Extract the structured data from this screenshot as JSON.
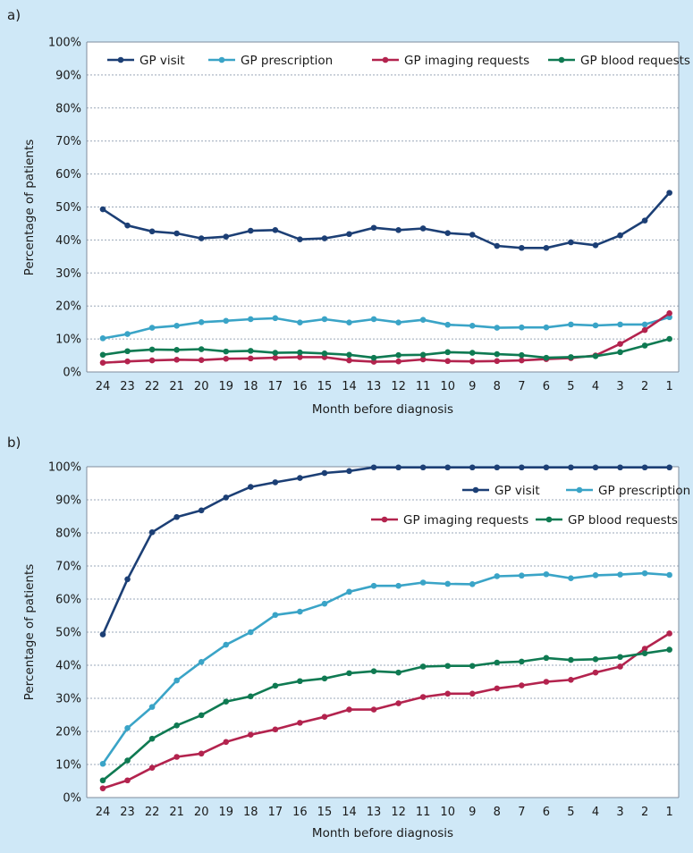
{
  "chart_data": [
    {
      "panel": "a)",
      "type": "line",
      "xlabel": "Month before diagnosis",
      "ylabel": "Percentage of patients",
      "x": [
        24,
        23,
        22,
        21,
        20,
        19,
        18,
        17,
        16,
        15,
        14,
        13,
        12,
        11,
        10,
        9,
        8,
        7,
        6,
        5,
        4,
        3,
        2,
        1
      ],
      "ylim": [
        0,
        100
      ],
      "yticks": [
        "0%",
        "10%",
        "20%",
        "30%",
        "40%",
        "50%",
        "60%",
        "70%",
        "80%",
        "90%",
        "100%"
      ],
      "grid": "horizontal dashed",
      "legend_position": "top",
      "series": [
        {
          "name": "GP visit",
          "color": "#1c3f75",
          "values": [
            49.3,
            44.4,
            42.6,
            42.0,
            40.5,
            41.0,
            42.8,
            43.0,
            40.2,
            40.5,
            41.8,
            43.7,
            43.0,
            43.5,
            42.1,
            41.6,
            38.2,
            37.6,
            37.6,
            39.3,
            38.4,
            41.4,
            45.9,
            54.3
          ]
        },
        {
          "name": "GP prescription",
          "color": "#3aa4c7",
          "values": [
            10.2,
            11.5,
            13.4,
            14.0,
            15.1,
            15.5,
            16.0,
            16.3,
            15.0,
            16.0,
            15.0,
            16.0,
            15.0,
            15.8,
            14.3,
            14.0,
            13.4,
            13.5,
            13.5,
            14.4,
            14.1,
            14.4,
            14.4,
            16.6
          ]
        },
        {
          "name": "GP imaging requests",
          "color": "#b3234e",
          "values": [
            2.8,
            3.2,
            3.5,
            3.7,
            3.6,
            4.0,
            4.1,
            4.3,
            4.5,
            4.5,
            3.5,
            3.1,
            3.2,
            3.8,
            3.3,
            3.2,
            3.3,
            3.5,
            3.9,
            4.2,
            5.0,
            8.5,
            12.7,
            17.8
          ]
        },
        {
          "name": "GP blood requests",
          "color": "#0f7a52",
          "values": [
            5.2,
            6.3,
            6.8,
            6.7,
            6.9,
            6.2,
            6.4,
            5.8,
            5.9,
            5.6,
            5.2,
            4.3,
            5.1,
            5.2,
            6.0,
            5.8,
            5.4,
            5.1,
            4.3,
            4.5,
            4.8,
            6.0,
            8.0,
            10.0
          ]
        }
      ]
    },
    {
      "panel": "b)",
      "type": "line",
      "xlabel": "Month before diagnosis",
      "ylabel": "Percentage of patients",
      "x": [
        24,
        23,
        22,
        21,
        20,
        19,
        18,
        17,
        16,
        15,
        14,
        13,
        12,
        11,
        10,
        9,
        8,
        7,
        6,
        5,
        4,
        3,
        2,
        1
      ],
      "ylim": [
        0,
        100
      ],
      "yticks": [
        "0%",
        "10%",
        "20%",
        "30%",
        "40%",
        "50%",
        "60%",
        "70%",
        "80%",
        "90%",
        "100%"
      ],
      "grid": "horizontal dashed",
      "legend_position": "top-right",
      "series": [
        {
          "name": "GP visit",
          "color": "#1c3f75",
          "values": [
            49.3,
            66.0,
            80.2,
            84.8,
            86.8,
            90.7,
            93.9,
            95.3,
            96.6,
            98.1,
            98.7,
            99.8,
            99.8,
            99.8,
            99.8,
            99.8,
            99.8,
            99.8,
            99.8,
            99.8,
            99.8,
            99.8,
            99.8,
            99.8
          ]
        },
        {
          "name": "GP prescription",
          "color": "#3aa4c7",
          "values": [
            10.2,
            21.0,
            27.4,
            35.4,
            41.0,
            46.2,
            50.0,
            55.2,
            56.2,
            58.6,
            62.2,
            64.0,
            64.0,
            65.0,
            64.6,
            64.5,
            66.9,
            67.1,
            67.5,
            66.3,
            67.2,
            67.4,
            67.8,
            67.3
          ]
        },
        {
          "name": "GP imaging requests",
          "color": "#b3234e",
          "values": [
            2.8,
            5.2,
            9.0,
            12.3,
            13.3,
            16.8,
            19.0,
            20.6,
            22.6,
            24.4,
            26.6,
            26.6,
            28.5,
            30.4,
            31.4,
            31.4,
            33.0,
            33.9,
            35.0,
            35.6,
            37.8,
            39.6,
            45.0,
            49.6
          ]
        },
        {
          "name": "GP blood requests",
          "color": "#0f7a52",
          "values": [
            5.2,
            11.2,
            17.8,
            21.8,
            24.9,
            29.0,
            30.6,
            33.8,
            35.2,
            36.0,
            37.6,
            38.2,
            37.8,
            39.6,
            39.8,
            39.8,
            40.8,
            41.1,
            42.2,
            41.6,
            41.8,
            42.5,
            43.6,
            44.7
          ]
        }
      ]
    }
  ]
}
